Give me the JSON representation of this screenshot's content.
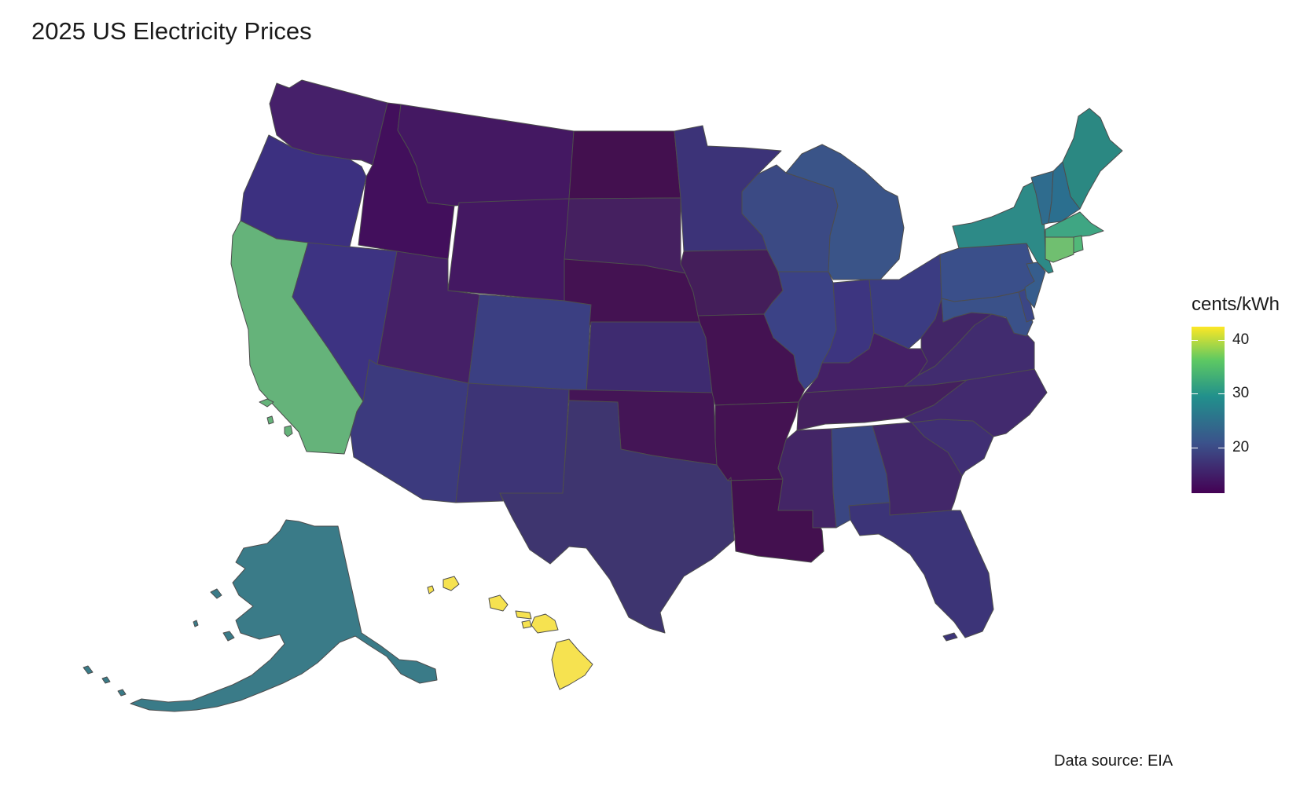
{
  "title": "2025 US Electricity Prices",
  "source": "Data source: EIA",
  "legend": {
    "title": "cents/kWh",
    "min": 11.5,
    "max": 42.5,
    "ticks": [
      {
        "value": 40,
        "label": "40"
      },
      {
        "value": 30,
        "label": "30"
      },
      {
        "value": 20,
        "label": "20"
      }
    ],
    "colormap": "viridis"
  },
  "map": {
    "region": "United States",
    "style": "choropleth",
    "border_color": "#4d4d4d"
  },
  "states": [
    {
      "name": "Washington",
      "value": 13.2,
      "fill": "#46206a"
    },
    {
      "name": "Oregon",
      "value": 15.8,
      "fill": "#3c3080"
    },
    {
      "name": "California",
      "value": 32.8,
      "fill": "#65b37a"
    },
    {
      "name": "Idaho",
      "value": 11.9,
      "fill": "#420f5c"
    },
    {
      "name": "Nevada",
      "value": 15.6,
      "fill": "#3d3382"
    },
    {
      "name": "Montana",
      "value": 12.3,
      "fill": "#441862"
    },
    {
      "name": "Wyoming",
      "value": 12.5,
      "fill": "#441862"
    },
    {
      "name": "Utah",
      "value": 12.9,
      "fill": "#452067"
    },
    {
      "name": "Arizona",
      "value": 16.2,
      "fill": "#3c3a7e"
    },
    {
      "name": "Colorado",
      "value": 16.8,
      "fill": "#3b3f82"
    },
    {
      "name": "New Mexico",
      "value": 15.2,
      "fill": "#3d3476"
    },
    {
      "name": "North Dakota",
      "value": 11.6,
      "fill": "#43104f"
    },
    {
      "name": "South Dakota",
      "value": 13.0,
      "fill": "#452060"
    },
    {
      "name": "Nebraska",
      "value": 11.8,
      "fill": "#441252"
    },
    {
      "name": "Kansas",
      "value": 14.6,
      "fill": "#3e2b70"
    },
    {
      "name": "Oklahoma",
      "value": 12.0,
      "fill": "#441556"
    },
    {
      "name": "Texas",
      "value": 15.6,
      "fill": "#3e356f"
    },
    {
      "name": "Minnesota",
      "value": 15.9,
      "fill": "#3c3378"
    },
    {
      "name": "Iowa",
      "value": 13.0,
      "fill": "#441e5a"
    },
    {
      "name": "Missouri",
      "value": 11.9,
      "fill": "#441252"
    },
    {
      "name": "Arkansas",
      "value": 11.9,
      "fill": "#441252"
    },
    {
      "name": "Louisiana",
      "value": 11.8,
      "fill": "#43104f"
    },
    {
      "name": "Wisconsin",
      "value": 18.2,
      "fill": "#3b4a84"
    },
    {
      "name": "Illinois",
      "value": 17.0,
      "fill": "#3b4286"
    },
    {
      "name": "Michigan",
      "value": 19.6,
      "fill": "#3a5488"
    },
    {
      "name": "Indiana",
      "value": 15.6,
      "fill": "#3d3580"
    },
    {
      "name": "Ohio",
      "value": 16.4,
      "fill": "#3b3c82"
    },
    {
      "name": "Kentucky",
      "value": 13.0,
      "fill": "#452066"
    },
    {
      "name": "Tennessee",
      "value": 12.9,
      "fill": "#44205e"
    },
    {
      "name": "Mississippi",
      "value": 13.6,
      "fill": "#432566"
    },
    {
      "name": "Alabama",
      "value": 17.3,
      "fill": "#3a4682"
    },
    {
      "name": "Georgia",
      "value": 14.0,
      "fill": "#422769"
    },
    {
      "name": "Florida",
      "value": 15.6,
      "fill": "#3c3478"
    },
    {
      "name": "South Carolina",
      "value": 14.8,
      "fill": "#402f74"
    },
    {
      "name": "North Carolina",
      "value": 14.3,
      "fill": "#422a6e"
    },
    {
      "name": "Virginia",
      "value": 14.6,
      "fill": "#412c6f"
    },
    {
      "name": "West Virginia",
      "value": 14.0,
      "fill": "#422667"
    },
    {
      "name": "Pennsylvania",
      "value": 18.9,
      "fill": "#3a4f8a"
    },
    {
      "name": "Maryland",
      "value": 19.4,
      "fill": "#3a5189"
    },
    {
      "name": "Delaware",
      "value": 17.5,
      "fill": "#3b4686"
    },
    {
      "name": "New Jersey",
      "value": 21.4,
      "fill": "#365d8d"
    },
    {
      "name": "New York",
      "value": 26.0,
      "fill": "#2d8a87"
    },
    {
      "name": "Vermont",
      "value": 23.0,
      "fill": "#2f6c8e"
    },
    {
      "name": "New Hampshire",
      "value": 24.5,
      "fill": "#2b6f8f"
    },
    {
      "name": "Maine",
      "value": 27.0,
      "fill": "#2b8882"
    },
    {
      "name": "Massachusetts",
      "value": 30.4,
      "fill": "#3fa683"
    },
    {
      "name": "Connecticut",
      "value": 34.0,
      "fill": "#70bf70"
    },
    {
      "name": "Rhode Island",
      "value": 32.6,
      "fill": "#52b879"
    },
    {
      "name": "Alaska",
      "value": 25.0,
      "fill": "#3a7b88"
    },
    {
      "name": "Hawaii",
      "value": 42.0,
      "fill": "#f6e250"
    }
  ]
}
